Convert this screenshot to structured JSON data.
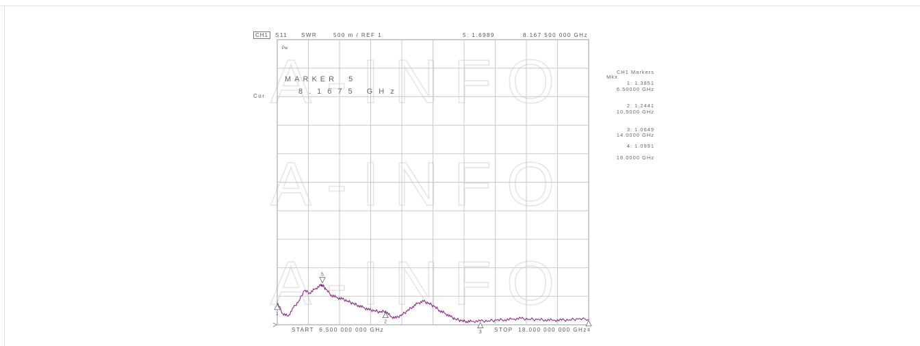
{
  "header": {
    "channel": "CH1",
    "param": "S11",
    "format": "SWR",
    "scale": "500 m / REF 1",
    "active_marker_readout": "5: 1.6989",
    "active_marker_freq": "8.167 500 000 GHz"
  },
  "left_label": "Cor",
  "pwr_label": "Pw",
  "marker_box": {
    "title": "MARKER  5",
    "value": "8.1675 GHz"
  },
  "marker_list": {
    "title": "CH1 Markers",
    "subtitle": "Mkx",
    "entries": [
      {
        "value": "1: 1.3851",
        "freq": "6.50000 GHz"
      },
      {
        "value": "2: 1.2441",
        "freq": "10.5000 GHz"
      },
      {
        "value": "3: 1.0649",
        "freq": "14.0000 GHz"
      },
      {
        "value": "4: 1.0991",
        "freq": "18.0000 GHz"
      }
    ]
  },
  "footer": {
    "start": "START  6.500 000 000 GHz",
    "stop": "STOP  18.000 000 000 GHz"
  },
  "watermark": "A-INFO",
  "colors": {
    "trace": "#8a2b8a",
    "grid": "#c8c8c8",
    "text": "#555555"
  },
  "chart_data": {
    "type": "line",
    "title": "",
    "xlabel": "",
    "ylabel": "SWR",
    "x_unit": "GHz",
    "xlim": [
      6.5,
      18.0
    ],
    "ylim": [
      1.0,
      6.0
    ],
    "grid": true,
    "divisions": {
      "x": 10,
      "y": 10
    },
    "reference_value": 1.0,
    "scale_per_div": 0.5,
    "series": [
      {
        "x": [
          6.5,
          6.7,
          6.9,
          7.1,
          7.3,
          7.5,
          7.7,
          7.9,
          8.1,
          8.1675,
          8.3,
          8.5,
          8.7,
          8.9,
          9.1,
          9.3,
          9.5,
          9.7,
          9.9,
          10.1,
          10.3,
          10.5,
          10.7,
          10.9,
          11.1,
          11.3,
          11.5,
          11.7,
          11.9,
          12.1,
          12.3,
          12.5,
          12.7,
          12.9,
          13.1,
          13.3,
          13.5,
          13.7,
          14.0,
          14.3,
          14.6,
          14.9,
          15.2,
          15.5,
          15.8,
          16.1,
          16.4,
          16.7,
          17.0,
          17.3,
          17.6,
          18.0
        ],
        "y": [
          1.3851,
          1.2,
          1.15,
          1.3,
          1.42,
          1.6,
          1.56,
          1.63,
          1.69,
          1.6989,
          1.62,
          1.52,
          1.48,
          1.45,
          1.42,
          1.37,
          1.34,
          1.3,
          1.26,
          1.25,
          1.22,
          1.2441,
          1.14,
          1.12,
          1.18,
          1.24,
          1.32,
          1.38,
          1.41,
          1.38,
          1.32,
          1.25,
          1.2,
          1.14,
          1.1,
          1.07,
          1.06,
          1.06,
          1.0649,
          1.07,
          1.08,
          1.09,
          1.1,
          1.11,
          1.1,
          1.09,
          1.09,
          1.08,
          1.08,
          1.09,
          1.1,
          1.0991
        ]
      }
    ],
    "markers": [
      {
        "id": "1",
        "x": 6.5,
        "y": 1.3851,
        "position": "below"
      },
      {
        "id": "2",
        "x": 10.5,
        "y": 1.2441,
        "position": "below"
      },
      {
        "id": "3",
        "x": 14.0,
        "y": 1.0649,
        "position": "below"
      },
      {
        "id": "4",
        "x": 18.0,
        "y": 1.0991,
        "position": "below"
      },
      {
        "id": "5",
        "x": 8.1675,
        "y": 1.6989,
        "position": "above"
      }
    ]
  }
}
